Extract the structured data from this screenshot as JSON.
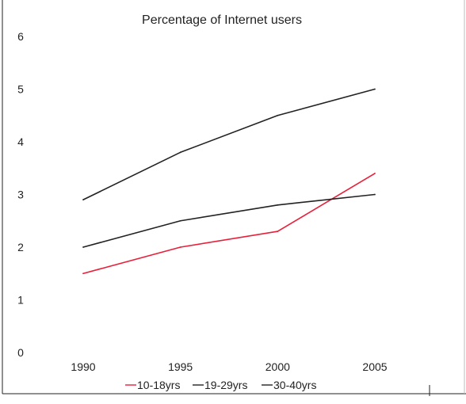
{
  "chart_data": {
    "type": "line",
    "title": "Percentage of Internet users",
    "xlabel": "",
    "ylabel": "",
    "x": [
      "1990",
      "1995",
      "2000",
      "2005"
    ],
    "ylim": [
      0,
      6
    ],
    "yticks": [
      "0",
      "1",
      "2",
      "3",
      "4",
      "5",
      "6"
    ],
    "grid": false,
    "legend_position": "bottom",
    "series": [
      {
        "name": "10-18yrs",
        "color": "#e8203a",
        "values": [
          1.5,
          2.0,
          2.3,
          3.4
        ]
      },
      {
        "name": "19-29yrs",
        "color": "#222222",
        "values": [
          2.0,
          2.5,
          2.8,
          3.0
        ]
      },
      {
        "name": "30-40yrs",
        "color": "#222222",
        "values": [
          2.9,
          3.8,
          4.5,
          5.0
        ]
      }
    ]
  }
}
